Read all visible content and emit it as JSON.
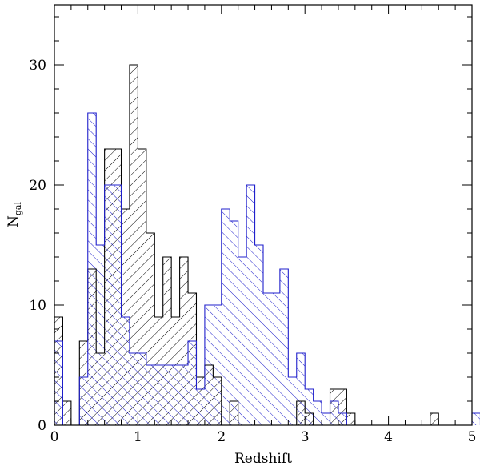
{
  "chart_data": {
    "type": "histogram",
    "title": "",
    "xlabel": "Redshift",
    "ylabel_main": "N",
    "ylabel_sub": "gal",
    "xlim": [
      0,
      5
    ],
    "ylim": [
      0,
      35
    ],
    "xticks": [
      0,
      1,
      2,
      3,
      4,
      5
    ],
    "xtick_labels": [
      "0",
      "1",
      "2",
      "3",
      "4",
      "5"
    ],
    "yticks": [
      0,
      10,
      20,
      30
    ],
    "ytick_labels": [
      "0",
      "10",
      "20",
      "30"
    ],
    "x_minor_step": 0.2,
    "y_minor_step": 2,
    "bin_width": 0.1,
    "grid": false,
    "legend": "none",
    "series": [
      {
        "color": "#000000",
        "hatch": "forward-diagonal",
        "bins_start": 0.0,
        "values": [
          9,
          2,
          0,
          7,
          13,
          6,
          23,
          23,
          18,
          30,
          23,
          16,
          9,
          14,
          9,
          14,
          11,
          4,
          5,
          4,
          0,
          2,
          0,
          0,
          0,
          0,
          0,
          0,
          0,
          2,
          1,
          0,
          0,
          3,
          3,
          1,
          0,
          0,
          0,
          0,
          0,
          0,
          0,
          0,
          0,
          1,
          0,
          0,
          0,
          0
        ]
      },
      {
        "color": "#1f1fcc",
        "hatch": "back-diagonal",
        "bins_start": 0.0,
        "values": [
          7,
          0,
          0,
          4,
          26,
          15,
          20,
          20,
          9,
          6,
          6,
          5,
          5,
          5,
          5,
          5,
          7,
          3,
          10,
          10,
          18,
          17,
          14,
          20,
          15,
          11,
          11,
          13,
          4,
          6,
          3,
          2,
          1,
          2,
          1,
          0,
          0,
          0,
          0,
          0,
          0,
          0,
          0,
          0,
          0,
          0,
          0,
          0,
          0,
          0,
          1
        ]
      }
    ]
  }
}
